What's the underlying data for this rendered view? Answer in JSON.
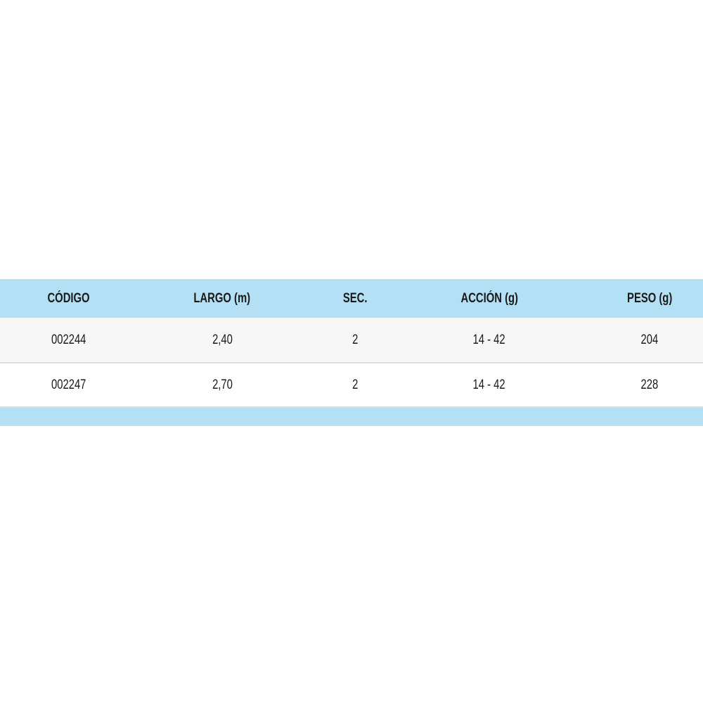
{
  "colors": {
    "header_bg": "#b3e0f4",
    "row_alt_bg": "#f7f7f7",
    "footer_bg": "#b3e0f4"
  },
  "table": {
    "headers": [
      "CÓDIGO",
      "LARGO (m)",
      "SEC.",
      "ACCIÓN (g)",
      "PESO (g)"
    ],
    "rows": [
      [
        "002244",
        "2,40",
        "2",
        "14 - 42",
        "204"
      ],
      [
        "002247",
        "2,70",
        "2",
        "14 - 42",
        "228"
      ]
    ]
  }
}
